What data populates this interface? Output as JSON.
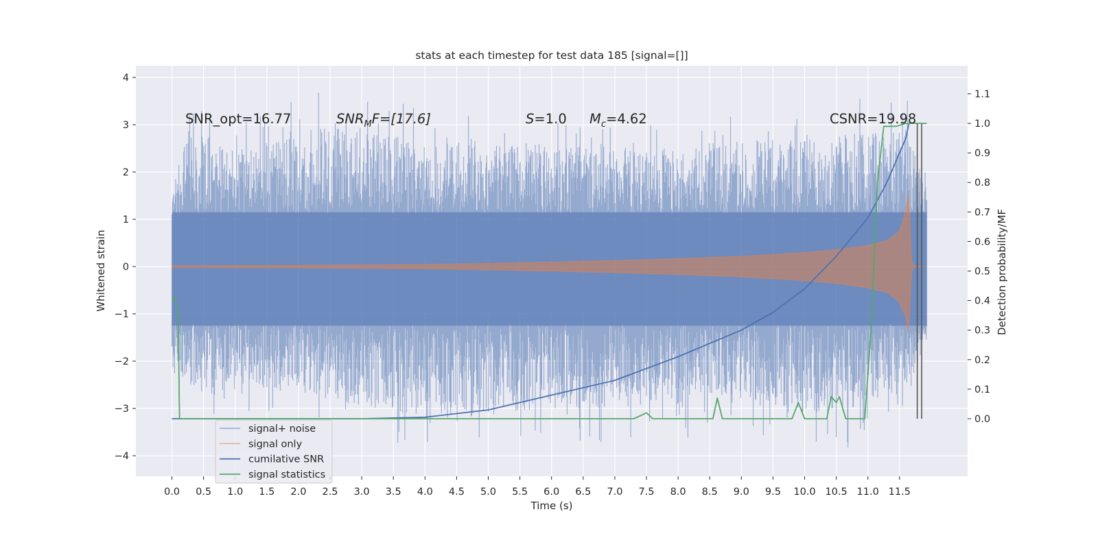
{
  "chart_data": {
    "type": "line",
    "title": "stats at each timestep for test data 185 [signal=[]]",
    "xlabel": "Time (s)",
    "ylabel_left": "Whitened strain",
    "ylabel_right": "Detection probability/MF",
    "xlim": [
      -0.5,
      12.7
    ],
    "ylim_left": [
      -4.45,
      4.25
    ],
    "ylim_right": [
      -0.2,
      1.2
    ],
    "x_ticks": [
      "0.0",
      "0.5",
      "1.0",
      "1.5",
      "2.0",
      "2.5",
      "3.0",
      "3.5",
      "4.0",
      "4.5",
      "5.0",
      "5.5",
      "6.0",
      "6.5",
      "7.0",
      "7.5",
      "8.0",
      "8.5",
      "9.0",
      "9.5",
      "10.0",
      "10.5",
      "11.0",
      "11.5"
    ],
    "y_left_ticks": [
      "4",
      "3",
      "2",
      "1",
      "0",
      "−1",
      "−2",
      "−3",
      "−4"
    ],
    "y_right_ticks": [
      "1.1",
      "1.0",
      "0.9",
      "0.8",
      "0.7",
      "0.6",
      "0.5",
      "0.4",
      "0.3",
      "0.2",
      "0.1",
      "0.0"
    ],
    "grid": true,
    "legend_placement": "lower-left",
    "annotations": {
      "snr_opt": "SNR_opt=16.77",
      "snr_mf_main": "SNR",
      "snr_mf_sub": "M",
      "snr_mf_rest": "F=[17.6]",
      "s_main": "S",
      "s_rest": "=1.0",
      "mc_main": "M",
      "mc_sub": "c",
      "mc_rest": "=4.62",
      "csnr": "CSNR=19.98"
    },
    "series": [
      {
        "name": "signal+ noise",
        "axis": "left",
        "color": "#4c72b0",
        "band_x": [
          0.0,
          11.93
        ],
        "envelope_upper": [
          [
            0.0,
            1.75
          ],
          [
            0.25,
            3.7
          ],
          [
            1.0,
            3.0
          ],
          [
            2.55,
            3.9
          ],
          [
            4.0,
            3.3
          ],
          [
            5.5,
            3.3
          ],
          [
            7.5,
            3.0
          ],
          [
            11.6,
            3.7
          ],
          [
            11.93,
            1.9
          ]
        ],
        "envelope_lower": [
          [
            0.0,
            -2.1
          ],
          [
            0.25,
            -3.3
          ],
          [
            1.0,
            -3.0
          ],
          [
            4.2,
            -4.1
          ],
          [
            6.0,
            -3.8
          ],
          [
            9.0,
            -3.6
          ],
          [
            10.5,
            -4.0
          ],
          [
            11.6,
            -3.4
          ],
          [
            11.93,
            -1.7
          ]
        ]
      },
      {
        "name": "signal only",
        "axis": "left",
        "color": "#dd8452",
        "amplitude": [
          [
            0.0,
            0.02
          ],
          [
            2.0,
            0.03
          ],
          [
            4.0,
            0.05
          ],
          [
            5.0,
            0.07
          ],
          [
            6.0,
            0.1
          ],
          [
            7.0,
            0.13
          ],
          [
            8.0,
            0.17
          ],
          [
            9.0,
            0.22
          ],
          [
            10.0,
            0.3
          ],
          [
            10.5,
            0.36
          ],
          [
            11.0,
            0.45
          ],
          [
            11.3,
            0.55
          ],
          [
            11.5,
            0.75
          ],
          [
            11.6,
            1.2
          ],
          [
            11.65,
            1.75
          ],
          [
            11.68,
            0.3
          ],
          [
            11.7,
            0.02
          ],
          [
            11.93,
            0.0
          ]
        ],
        "amplitude_lower": [
          [
            11.6,
            -1.3
          ],
          [
            11.65,
            -1.55
          ]
        ]
      },
      {
        "name": "cumilative SNR",
        "axis": "right",
        "color": "#4c72b0",
        "points": [
          [
            0.0,
            0.0
          ],
          [
            3.0,
            0.0
          ],
          [
            4.0,
            0.005
          ],
          [
            5.0,
            0.03
          ],
          [
            6.0,
            0.08
          ],
          [
            7.0,
            0.13
          ],
          [
            8.0,
            0.21
          ],
          [
            9.0,
            0.3
          ],
          [
            9.5,
            0.36
          ],
          [
            10.0,
            0.44
          ],
          [
            10.5,
            0.55
          ],
          [
            11.0,
            0.68
          ],
          [
            11.3,
            0.8
          ],
          [
            11.5,
            0.9
          ],
          [
            11.6,
            0.95
          ],
          [
            11.65,
            1.0
          ]
        ]
      },
      {
        "name": "signal statistics",
        "axis": "right",
        "color": "#55a868",
        "points": [
          [
            0.0,
            0.4
          ],
          [
            0.05,
            0.41
          ],
          [
            0.1,
            0.35
          ],
          [
            0.12,
            0.0
          ],
          [
            7.3,
            0.0
          ],
          [
            7.5,
            0.02
          ],
          [
            7.6,
            0.0
          ],
          [
            8.55,
            0.0
          ],
          [
            8.62,
            0.07
          ],
          [
            8.7,
            0.0
          ],
          [
            9.8,
            0.0
          ],
          [
            9.9,
            0.055
          ],
          [
            10.0,
            0.0
          ],
          [
            10.35,
            0.0
          ],
          [
            10.42,
            0.075
          ],
          [
            10.5,
            0.055
          ],
          [
            10.55,
            0.075
          ],
          [
            10.65,
            0.0
          ],
          [
            10.95,
            0.0
          ],
          [
            11.05,
            0.3
          ],
          [
            11.15,
            0.8
          ],
          [
            11.25,
            0.99
          ],
          [
            11.45,
            0.99
          ],
          [
            11.6,
            1.0
          ],
          [
            11.93,
            1.0
          ]
        ]
      }
    ],
    "vertical_lines": [
      11.78,
      11.85
    ]
  }
}
